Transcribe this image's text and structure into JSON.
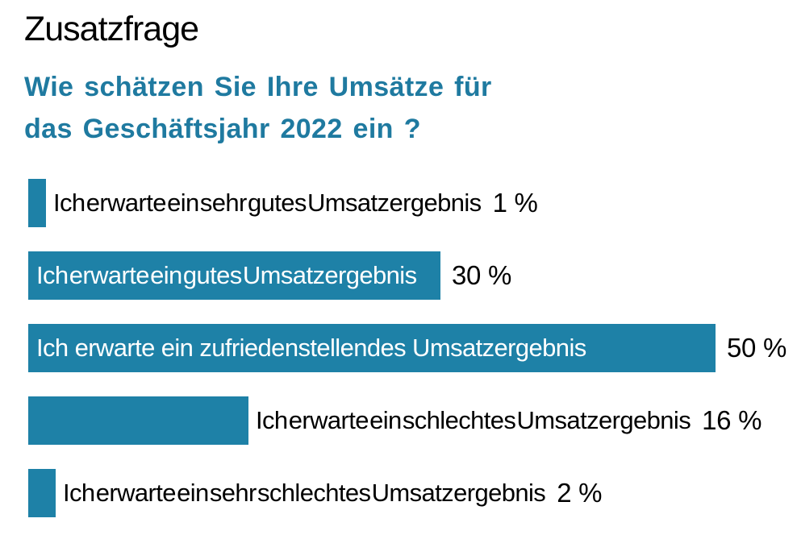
{
  "header": {
    "title": "Zusatzfrage",
    "question_line1": "Wie schätzen Sie Ihre Umsätze für",
    "question_line2": "das Geschäftsjahr 2022 ein ?"
  },
  "colors": {
    "background": "#ffffff",
    "bar": "#1e81a7",
    "heading": "#1f7aa0",
    "text": "#000000",
    "inside_label": "#ffffff"
  },
  "chart_data": {
    "type": "bar",
    "orientation": "horizontal",
    "title": "Zusatzfrage",
    "subtitle": "Wie schätzen Sie Ihre Umsätze für das Geschäftsjahr 2022 ein ?",
    "unit": "%",
    "grid": false,
    "legend": "none",
    "axis": "none",
    "xlim": [
      0,
      56
    ],
    "categories": [
      "Ich erwarte ein sehr gutes Umsatzergebnis",
      "Ich erwarte ein gutes Umsatzergebnis",
      "Ich erwarte ein zufriedenstellendes Umsatzergebnis",
      "Ich erwarte ein schlechtes Umsatzergebnis",
      "Ich erwarte ein sehr schlechtes Umsatzergebnis"
    ],
    "values": [
      1,
      30,
      50,
      16,
      2
    ],
    "value_labels": [
      "1 %",
      "30 %",
      "50 %",
      "16 %",
      "2 %"
    ],
    "label_positions": [
      "outside",
      "inside",
      "inside",
      "outside",
      "outside"
    ]
  }
}
